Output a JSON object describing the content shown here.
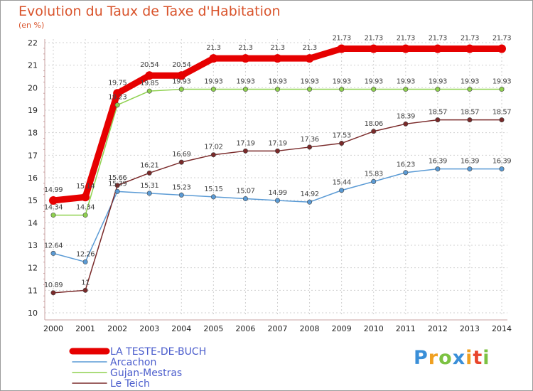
{
  "header": {
    "title": "Evolution du Taux de Taxe d'Habitation",
    "unit": "(en %)"
  },
  "brand": {
    "text": "Proxiti",
    "letters": [
      {
        "ch": "P",
        "color": "#3a8fd8"
      },
      {
        "ch": "r",
        "color": "#f0a020"
      },
      {
        "ch": "o",
        "color": "#7cc242"
      },
      {
        "ch": "x",
        "color": "#3a8fd8"
      },
      {
        "ch": "i",
        "color": "#f0a020"
      },
      {
        "ch": "t",
        "color": "#e8452c"
      },
      {
        "ch": "i",
        "color": "#7cc242"
      }
    ]
  },
  "chart_data": {
    "type": "line",
    "title": "Evolution du Taux de Taxe d'Habitation",
    "ylabel": "(en %)",
    "xlabel": "",
    "x": [
      "2000",
      "2001",
      "2002",
      "2003",
      "2004",
      "2005",
      "2006",
      "2007",
      "2008",
      "2009",
      "2010",
      "2011",
      "2012",
      "2013",
      "2014"
    ],
    "ylim": [
      10,
      22
    ],
    "yticks": [
      "10",
      "11",
      "12",
      "13",
      "14",
      "15",
      "16",
      "17",
      "18",
      "19",
      "20",
      "21",
      "22"
    ],
    "grid": true,
    "legend": "bottom-left",
    "series": [
      {
        "name": "LA TESTE-DE-BUCH",
        "color": "#e60000",
        "values": [
          14.99,
          15.14,
          19.75,
          20.54,
          20.54,
          21.3,
          21.3,
          21.3,
          21.3,
          21.73,
          21.73,
          21.73,
          21.73,
          21.73,
          21.73
        ],
        "labels": [
          "14.99",
          "15.14",
          "19.75",
          "20.54",
          "20.54",
          "21.3",
          "21.3",
          "21.3",
          "21.3",
          "21.73",
          "21.73",
          "21.73",
          "21.73",
          "21.73",
          "21.73"
        ]
      },
      {
        "name": "Arcachon",
        "color": "#5b9bd5",
        "values": [
          12.64,
          12.26,
          15.39,
          15.31,
          15.23,
          15.15,
          15.07,
          14.99,
          14.92,
          15.44,
          15.83,
          16.23,
          16.39,
          16.39,
          16.39
        ],
        "labels": [
          "12.64",
          "12.26",
          "15.39",
          "15.31",
          "15.23",
          "15.15",
          "15.07",
          "14.99",
          "14.92",
          "15.44",
          "15.83",
          "16.23",
          "16.39",
          "16.39",
          "16.39"
        ]
      },
      {
        "name": "Gujan-Mestras",
        "color": "#8fd14f",
        "values": [
          14.34,
          14.34,
          19.23,
          19.85,
          19.93,
          19.93,
          19.93,
          19.93,
          19.93,
          19.93,
          19.93,
          19.93,
          19.93,
          19.93,
          19.93
        ],
        "labels": [
          "14.34",
          "14.34",
          "19.23",
          "19.85",
          "19.93",
          "19.93",
          "19.93",
          "19.93",
          "19.93",
          "19.93",
          "19.93",
          "19.93",
          "19.93",
          "19.93",
          "19.93"
        ]
      },
      {
        "name": "Le Teich",
        "color": "#7a2a2a",
        "values": [
          10.89,
          11.0,
          15.66,
          16.21,
          16.69,
          17.02,
          17.19,
          17.19,
          17.36,
          17.53,
          18.06,
          18.39,
          18.57,
          18.57,
          18.57
        ],
        "labels": [
          "10.89",
          "11",
          "15.66",
          "16.21",
          "16.69",
          "17.02",
          "17.19",
          "17.19",
          "17.36",
          "17.53",
          "18.06",
          "18.39",
          "18.57",
          "18.57",
          "18.57"
        ]
      }
    ]
  }
}
